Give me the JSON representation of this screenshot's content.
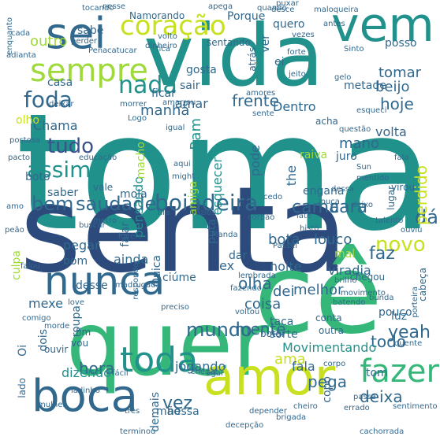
{
  "palette": {
    "purple": "#440154",
    "indigo": "#3b528b",
    "slate": "#31688e",
    "teal": "#21918c",
    "green": "#35b779",
    "lime": "#5ec962",
    "yellowgreen": "#9fda3a",
    "yellow": "#c8e020",
    "navy": "#2c4a7c"
  },
  "words": [
    {
      "text": "toma",
      "color": "teal"
    },
    {
      "text": "senta",
      "color": "navy"
    },
    {
      "text": "quer",
      "color": "green"
    },
    {
      "text": "cê",
      "color": "green"
    },
    {
      "text": "vida",
      "color": "teal"
    },
    {
      "text": "amor",
      "color": "yellow"
    },
    {
      "text": "boca",
      "color": "slate"
    },
    {
      "text": "vem",
      "color": "teal"
    },
    {
      "text": "nunca",
      "color": "slate"
    },
    {
      "text": "sempre",
      "color": "yellowgreen"
    },
    {
      "text": "sei",
      "color": "slate"
    },
    {
      "text": "coração",
      "color": "yellow"
    },
    {
      "text": "toda",
      "color": "teal"
    },
    {
      "text": "fazer",
      "color": "green"
    },
    {
      "text": "boiadeira",
      "color": "slate"
    },
    {
      "text": "saudade",
      "color": "slate"
    },
    {
      "text": "bem",
      "color": "slate"
    },
    {
      "text": "cama",
      "color": "slate"
    },
    {
      "text": "cara",
      "color": "slate"
    },
    {
      "text": "frente",
      "color": "slate"
    },
    {
      "text": "nada",
      "color": "teal"
    },
    {
      "text": "foda",
      "color": "slate"
    },
    {
      "text": "tudo",
      "color": "indigo"
    },
    {
      "text": "assim",
      "color": "teal"
    },
    {
      "text": "novo",
      "color": "yellow"
    },
    {
      "text": "dá",
      "color": "slate"
    },
    {
      "text": "mundo",
      "color": "slate"
    },
    {
      "text": "pega",
      "color": "slate"
    },
    {
      "text": "olha",
      "color": "slate"
    },
    {
      "text": "vez",
      "color": "slate"
    },
    {
      "text": "hora",
      "color": "slate"
    },
    {
      "text": "beijo",
      "color": "slate"
    },
    {
      "text": "faz",
      "color": "slate"
    },
    {
      "text": "ama",
      "color": "yellow"
    },
    {
      "text": "mente",
      "color": "slate"
    },
    {
      "text": "bota",
      "color": "slate"
    },
    {
      "text": "louco",
      "color": "slate"
    },
    {
      "text": "todo",
      "color": "slate"
    },
    {
      "text": "yeah",
      "color": "slate"
    },
    {
      "text": "deixa",
      "color": "slate"
    },
    {
      "text": "pensando",
      "color": "teal"
    },
    {
      "text": "Ram",
      "color": "teal"
    },
    {
      "text": "perdido",
      "color": "yellow"
    },
    {
      "text": "hoje",
      "color": "slate"
    },
    {
      "text": "tomar",
      "color": "slate"
    },
    {
      "text": "outro",
      "color": "yellowgreen"
    },
    {
      "text": "quero",
      "color": "slate"
    },
    {
      "text": "Porque",
      "color": "slate"
    },
    {
      "text": "Dentro",
      "color": "slate"
    },
    {
      "text": "pode",
      "color": "slate"
    },
    {
      "text": "esquecer",
      "color": "teal"
    },
    {
      "text": "mexe",
      "color": "slate"
    },
    {
      "text": "dizendo",
      "color": "teal"
    },
    {
      "text": "jogando",
      "color": "slate"
    },
    {
      "text": "Movimentando",
      "color": "teal"
    },
    {
      "text": "dei",
      "color": "slate"
    },
    {
      "text": "melhor",
      "color": "slate"
    },
    {
      "text": "coisa",
      "color": "slate"
    },
    {
      "text": "noite",
      "color": "slate"
    },
    {
      "text": "ainda",
      "color": "slate"
    },
    {
      "text": "viradia",
      "color": "slate"
    },
    {
      "text": "pegar",
      "color": "slate"
    },
    {
      "text": "tom",
      "color": "slate"
    },
    {
      "text": "fala",
      "color": "slate"
    },
    {
      "text": "amar",
      "color": "slate"
    },
    {
      "text": "manhã",
      "color": "slate"
    },
    {
      "text": "mano",
      "color": "slate"
    },
    {
      "text": "volta",
      "color": "slate"
    },
    {
      "text": "ficar",
      "color": "slate"
    },
    {
      "text": "sair",
      "color": "slate"
    },
    {
      "text": "gosta",
      "color": "slate"
    },
    {
      "text": "casa",
      "color": "slate"
    },
    {
      "text": "Chama",
      "color": "slate"
    },
    {
      "text": "boto",
      "color": "slate"
    },
    {
      "text": "saber",
      "color": "slate"
    },
    {
      "text": "mola",
      "color": "slate"
    },
    {
      "text": "vale",
      "color": "slate"
    },
    {
      "text": "macho",
      "color": "yellowgreen"
    },
    {
      "text": "amiga",
      "color": "yellowgreen"
    },
    {
      "text": "the",
      "color": "slate"
    },
    {
      "text": "raiva",
      "color": "yellowgreen"
    },
    {
      "text": "juro",
      "color": "slate"
    },
    {
      "text": "engana",
      "color": "slate"
    },
    {
      "text": "bom",
      "color": "slate"
    },
    {
      "text": "ciúme",
      "color": "slate"
    },
    {
      "text": "ex",
      "color": "slate"
    },
    {
      "text": "dar",
      "color": "slate"
    },
    {
      "text": "mal",
      "color": "yellowgreen"
    },
    {
      "text": "luz",
      "color": "slate"
    },
    {
      "text": "pouco",
      "color": "slate"
    },
    {
      "text": "sorte",
      "color": "slate"
    },
    {
      "text": "taca",
      "color": "slate"
    },
    {
      "text": "desse",
      "color": "slate"
    },
    {
      "text": "nessa",
      "color": "slate"
    },
    {
      "text": "copo",
      "color": "slate"
    },
    {
      "text": "culpa",
      "color": "yellowgreen"
    },
    {
      "text": "Quica",
      "color": "slate"
    },
    {
      "text": "metade",
      "color": "slate"
    },
    {
      "text": "sabe",
      "color": "slate"
    },
    {
      "text": "ei",
      "color": "slate"
    },
    {
      "text": "Namorando",
      "color": "slate"
    },
    {
      "text": "olho",
      "color": "yellow"
    },
    {
      "text": "posso",
      "color": "slate"
    },
    {
      "text": "nesse",
      "color": "slate"
    },
    {
      "text": "falar",
      "color": "slate"
    },
    {
      "text": "puta",
      "color": "slate"
    },
    {
      "text": "atrás",
      "color": "slate"
    },
    {
      "text": "ver",
      "color": "slate"
    },
    {
      "text": "roupa",
      "color": "slate"
    },
    {
      "text": "demais",
      "color": "slate"
    },
    {
      "text": "mão",
      "color": "slate"
    },
    {
      "text": "ouvir",
      "color": "slate"
    },
    {
      "text": "fim",
      "color": "slate"
    },
    {
      "text": "vou",
      "color": "slate"
    },
    {
      "text": "lado",
      "color": "slate"
    },
    {
      "text": "Oi",
      "color": "slate"
    },
    {
      "text": "dois",
      "color": "slate"
    },
    {
      "text": "chegou",
      "color": "slate"
    },
    {
      "text": "botar",
      "color": "slate"
    },
    {
      "text": "outra",
      "color": "slate"
    },
    {
      "text": "conta",
      "color": "slate"
    },
    {
      "text": "sentando",
      "color": "slate"
    },
    {
      "text": "quando",
      "color": "slate"
    },
    {
      "text": "vezes",
      "color": "slate"
    },
    {
      "text": "amarrou",
      "color": "slate"
    },
    {
      "text": "igual",
      "color": "slate"
    },
    {
      "text": "cabeça",
      "color": "slate"
    },
    {
      "text": "lugar",
      "color": "slate"
    },
    {
      "text": "virou",
      "color": "slate"
    },
    {
      "text": "desce",
      "color": "slate"
    },
    {
      "text": "puxar",
      "color": "slate"
    },
    {
      "text": "maloqueira",
      "color": "slate"
    },
    {
      "text": "antes",
      "color": "slate"
    },
    {
      "text": "Pena",
      "color": "slate"
    },
    {
      "text": "volto",
      "color": "slate"
    },
    {
      "text": "fica",
      "color": "slate"
    },
    {
      "text": "jeito",
      "color": "slate"
    },
    {
      "text": "apega",
      "color": "slate"
    },
    {
      "text": "gelo",
      "color": "slate"
    },
    {
      "text": "amores",
      "color": "slate"
    },
    {
      "text": "deixar",
      "color": "slate"
    },
    {
      "text": "morrer",
      "color": "slate"
    },
    {
      "text": "sente",
      "color": "slate"
    },
    {
      "text": "acha",
      "color": "slate"
    },
    {
      "text": "questão",
      "color": "slate"
    },
    {
      "text": "Logo",
      "color": "slate"
    },
    {
      "text": "esqueci",
      "color": "slate"
    },
    {
      "text": "Sun",
      "color": "slate"
    },
    {
      "text": "might",
      "color": "slate"
    },
    {
      "text": "fila",
      "color": "slate"
    },
    {
      "text": "vazios",
      "color": "slate"
    },
    {
      "text": "corpão",
      "color": "slate"
    },
    {
      "text": "histó",
      "color": "slate"
    },
    {
      "text": "deixo",
      "color": "slate"
    },
    {
      "text": "buscar",
      "color": "slate"
    },
    {
      "text": "Manda",
      "color": "slate"
    },
    {
      "text": "lovers",
      "color": "slate"
    },
    {
      "text": "Passei",
      "color": "slate"
    },
    {
      "text": "late",
      "color": "slate"
    },
    {
      "text": "sentimento",
      "color": "slate"
    },
    {
      "text": "cheiro",
      "color": "slate"
    },
    {
      "text": "três",
      "color": "slate"
    },
    {
      "text": "terminou",
      "color": "slate"
    },
    {
      "text": "decepção",
      "color": "slate"
    },
    {
      "text": "depender",
      "color": "slate"
    },
    {
      "text": "cachorrada",
      "color": "slate"
    },
    {
      "text": "errado",
      "color": "slate"
    },
    {
      "text": "passa",
      "color": "slate"
    },
    {
      "text": "corpo",
      "color": "slate"
    },
    {
      "text": "ligar",
      "color": "slate"
    },
    {
      "text": "chegar",
      "color": "slate"
    },
    {
      "text": "responder",
      "color": "slate"
    },
    {
      "text": "preciso",
      "color": "slate"
    },
    {
      "text": "madrugada",
      "color": "slate"
    },
    {
      "text": "bunda",
      "color": "slate"
    },
    {
      "text": "talento",
      "color": "slate"
    },
    {
      "text": "fazendo",
      "color": "slate"
    },
    {
      "text": "lembrada",
      "color": "slate"
    },
    {
      "text": "brilho",
      "color": "slate"
    },
    {
      "text": "batendo",
      "color": "slate"
    },
    {
      "text": "movimento",
      "color": "slate"
    },
    {
      "text": "porteira",
      "color": "slate"
    },
    {
      "text": "quente",
      "color": "slate"
    },
    {
      "text": "voltou",
      "color": "slate"
    },
    {
      "text": "fácil",
      "color": "slate"
    },
    {
      "text": "ladinho",
      "color": "slate"
    },
    {
      "text": "mulher",
      "color": "slate"
    },
    {
      "text": "love",
      "color": "slate"
    },
    {
      "text": "morde",
      "color": "slate"
    },
    {
      "text": "comigo",
      "color": "slate"
    },
    {
      "text": "falou",
      "color": "slate"
    },
    {
      "text": "peão",
      "color": "slate"
    },
    {
      "text": "amo",
      "color": "slate"
    },
    {
      "text": "metro",
      "color": "slate"
    },
    {
      "text": "cedo",
      "color": "slate"
    },
    {
      "text": "dessa",
      "color": "slate"
    },
    {
      "text": "louca",
      "color": "slate"
    },
    {
      "text": "mentido",
      "color": "slate"
    },
    {
      "text": "aqui",
      "color": "slate"
    },
    {
      "text": "educação",
      "color": "slate"
    },
    {
      "text": "pacto",
      "color": "slate"
    },
    {
      "text": "postosa",
      "color": "slate"
    },
    {
      "text": "dinheiro",
      "color": "slate"
    },
    {
      "text": "tocando",
      "color": "slate"
    },
    {
      "text": "enquanto",
      "color": "slate"
    },
    {
      "text": "cada",
      "color": "slate"
    },
    {
      "text": "perder",
      "color": "slate"
    },
    {
      "text": "adianta",
      "color": "slate"
    },
    {
      "text": "catucar",
      "color": "slate"
    },
    {
      "text": "forte",
      "color": "slate"
    },
    {
      "text": "Sinto",
      "color": "slate"
    },
    {
      "text": "fala",
      "color": "slate"
    },
    {
      "text": "ouviu",
      "color": "slate"
    },
    {
      "text": "brigada",
      "color": "slate"
    }
  ]
}
